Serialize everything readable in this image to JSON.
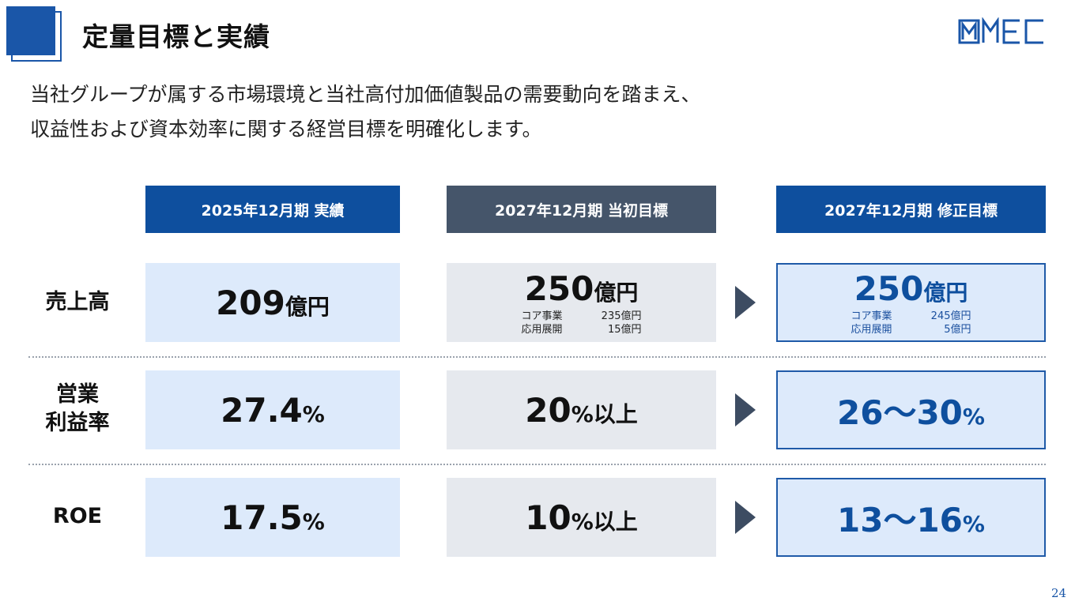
{
  "header": {
    "title": "定量目標と実績",
    "logo_text": "MMEC",
    "brand_color": "#1a56a8"
  },
  "intro": {
    "line1": "当社グループが属する市場環境と当社高付加価値製品の需要動向を踏まえ、",
    "line2": "収益性および資本効率に関する経営目標を明確化します。"
  },
  "columns": [
    {
      "label": "2025年12月期 実績"
    },
    {
      "label": "2027年12月期 当初目標"
    },
    {
      "label": "2027年12月期 修正目標"
    }
  ],
  "rows": {
    "sales": {
      "label": "売上高",
      "actual": {
        "num": "209",
        "unit": "億円"
      },
      "initial": {
        "num": "250",
        "unit": "億円",
        "breakdown": [
          {
            "name": "コア事業",
            "value": "235億円"
          },
          {
            "name": "応用展開",
            "value": "15億円"
          }
        ]
      },
      "revised": {
        "num": "250",
        "unit": "億円",
        "breakdown": [
          {
            "name": "コア事業",
            "value": "245億円"
          },
          {
            "name": "応用展開",
            "value": "5億円"
          }
        ]
      }
    },
    "op_margin": {
      "label_line1": "営業",
      "label_line2": "利益率",
      "actual": {
        "num": "27.4",
        "unit": "%"
      },
      "initial": {
        "num": "20",
        "unit": "%以上"
      },
      "revised": {
        "num": "26～30",
        "unit": "%"
      }
    },
    "roe": {
      "label": "ROE",
      "actual": {
        "num": "17.5",
        "unit": "%"
      },
      "initial": {
        "num": "10",
        "unit": "%以上"
      },
      "revised": {
        "num": "13～16",
        "unit": "%"
      }
    }
  },
  "footer": {
    "page_number": "24"
  },
  "colors": {
    "header_blue": "#0e4f9e",
    "header_gray": "#45556a",
    "cell_blue": "#ddeafb",
    "cell_gray": "#e6e9ee"
  }
}
